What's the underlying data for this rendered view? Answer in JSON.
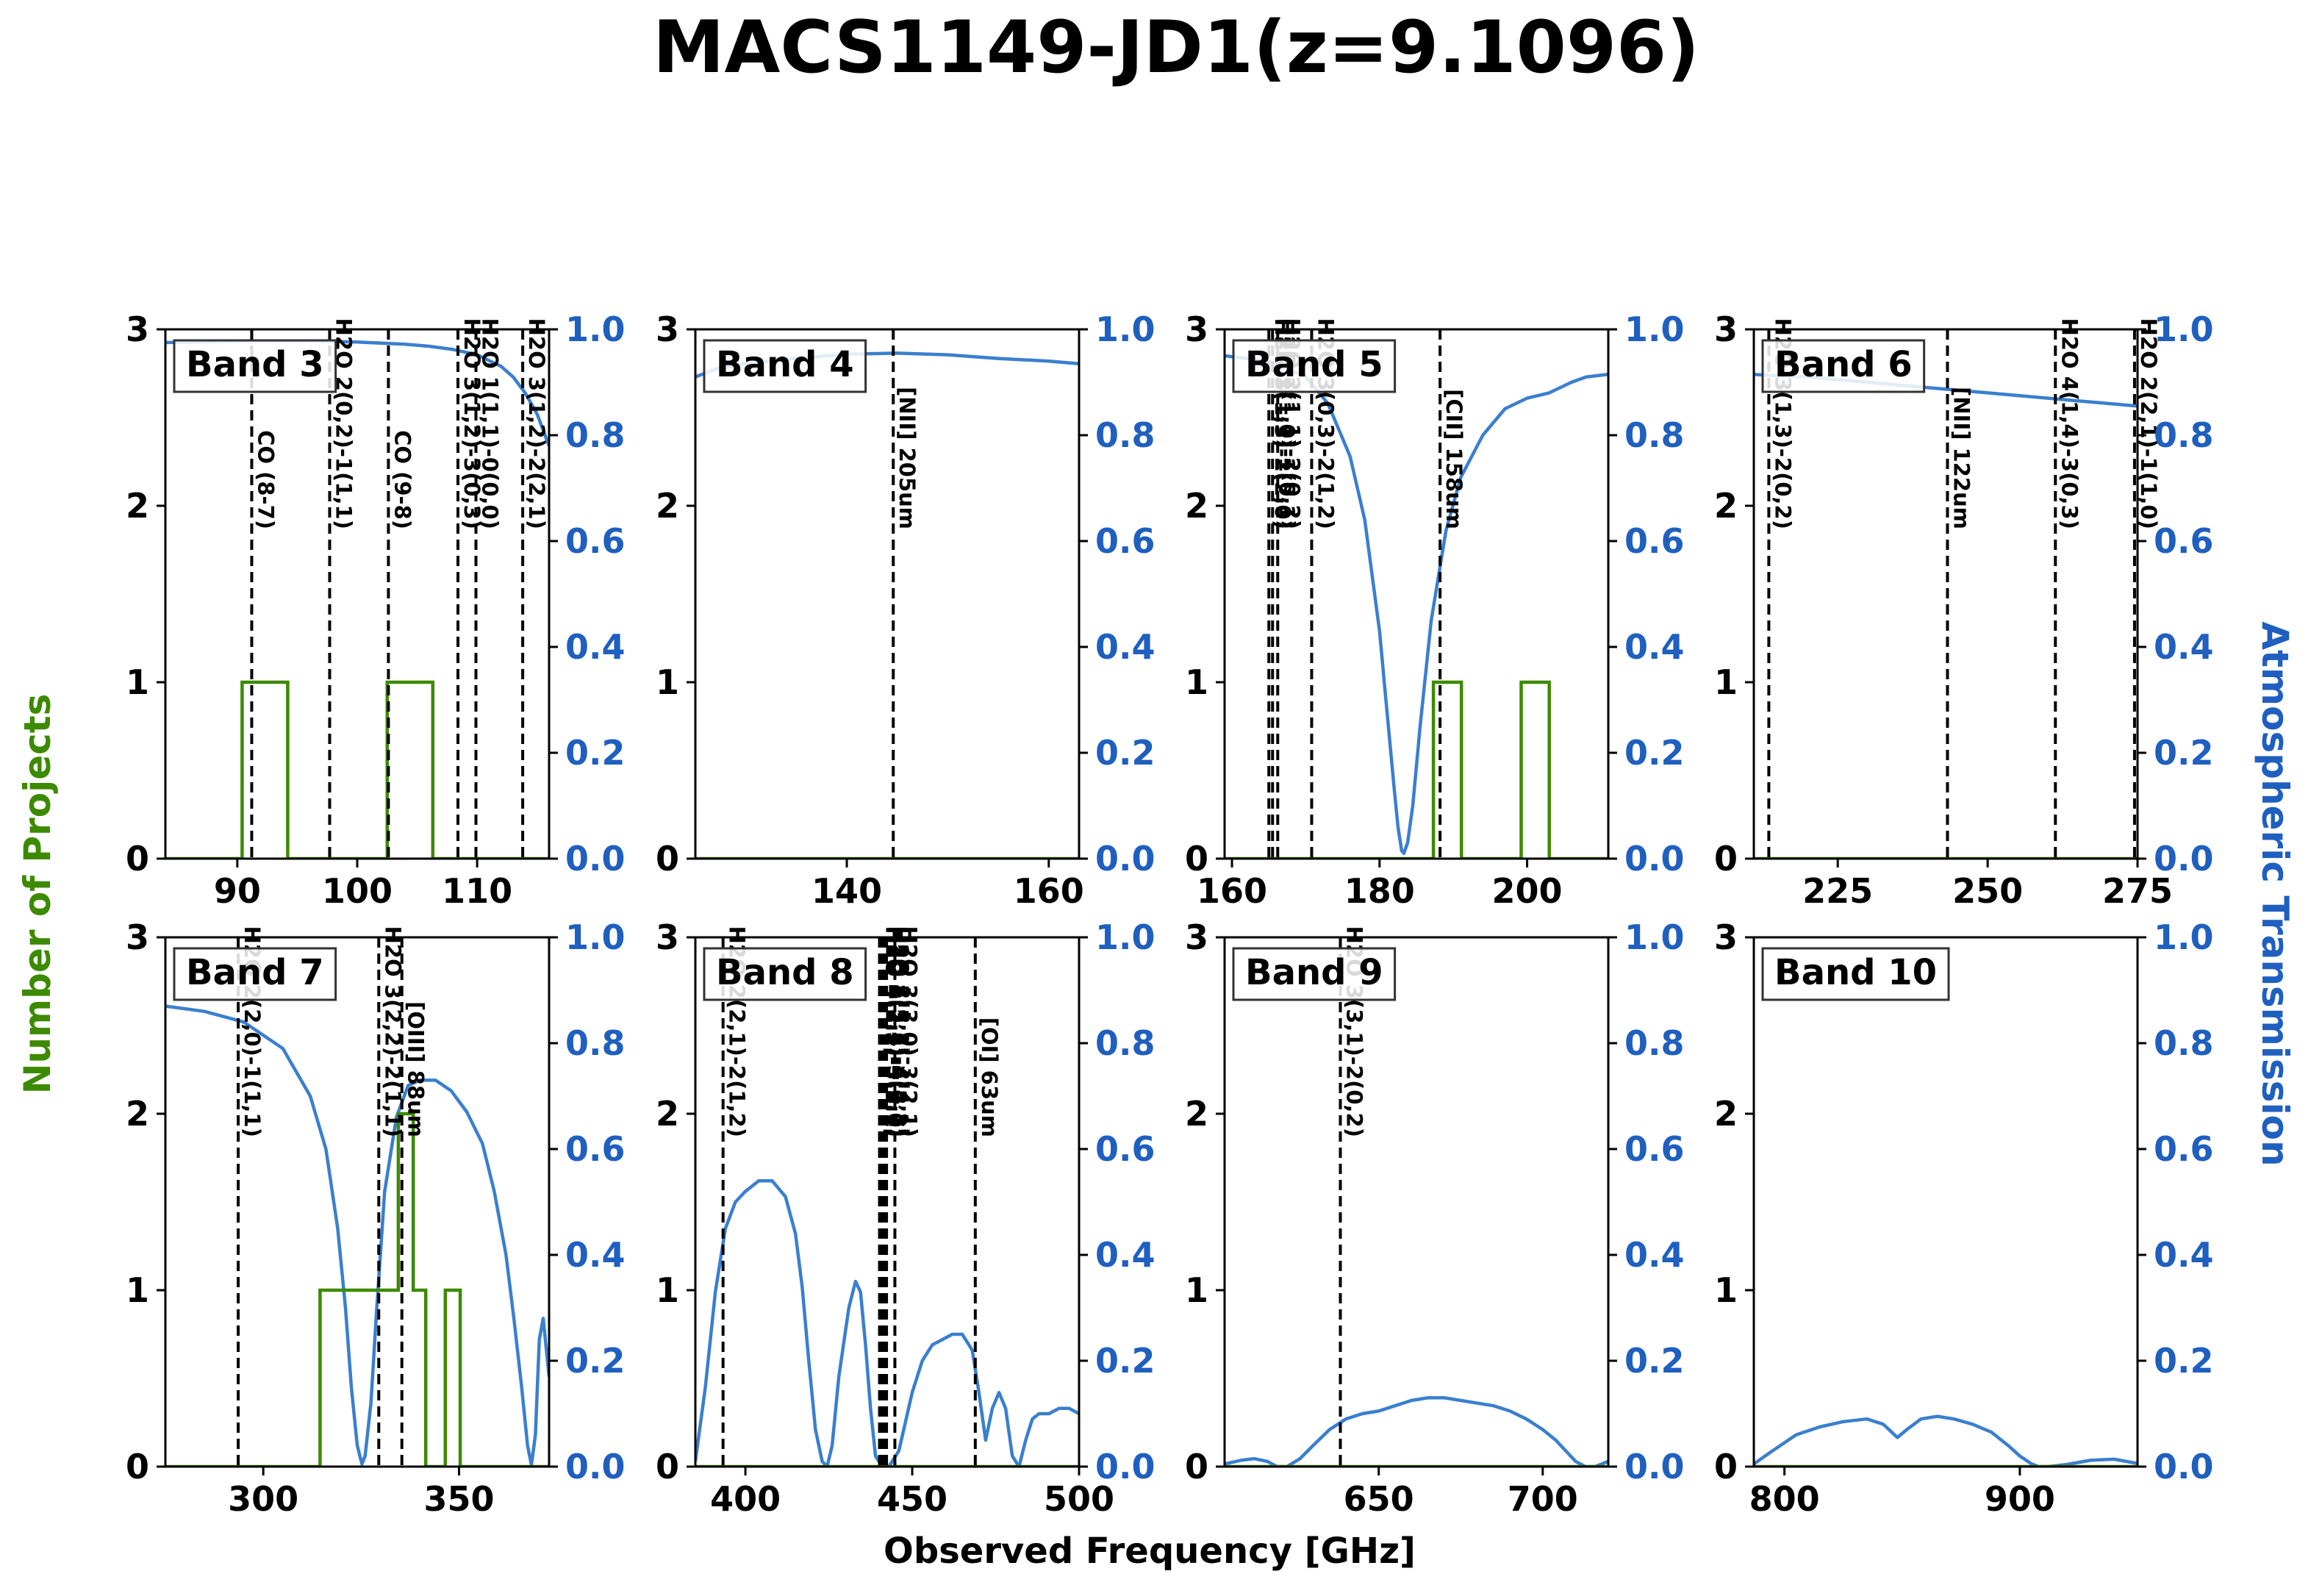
{
  "figure": {
    "title": "MACS1149-JD1(z=9.1096)",
    "xlabel": "Observed Frequency [GHz]",
    "ylabel_left": "Number of Projects",
    "ylabel_right": "Atmospheric Transmission",
    "colors": {
      "projects": "#3c8a00",
      "transmission": "#3a7fcf",
      "right_axis_text": "#1f5fbf",
      "axis": "#000000",
      "line_markers": "#000000"
    }
  },
  "chart_data": [
    {
      "type": "line",
      "title": "Band 3",
      "xlim": [
        84,
        116
      ],
      "ylim_left": [
        0,
        3
      ],
      "ylim_right": [
        0,
        1
      ],
      "xticks": [
        90,
        100,
        110
      ],
      "yticks_left": [
        0,
        1,
        2,
        3
      ],
      "yticks_right": [
        0.0,
        0.2,
        0.4,
        0.6,
        0.8,
        1.0
      ],
      "projects": {
        "x": [
          84,
          90.4,
          90.4,
          94.2,
          94.2,
          102.5,
          102.5,
          106.3,
          106.3,
          116
        ],
        "y": [
          0,
          0,
          1,
          1,
          0,
          0,
          1,
          1,
          0,
          0
        ]
      },
      "transmission": {
        "x": [
          84,
          90,
          96,
          100,
          104,
          106,
          108,
          110,
          112,
          113,
          114,
          115,
          116
        ],
        "y": [
          0.975,
          0.978,
          0.978,
          0.976,
          0.972,
          0.968,
          0.962,
          0.952,
          0.93,
          0.91,
          0.88,
          0.84,
          0.78
        ]
      },
      "lines": [
        {
          "x": 91.2,
          "label": "CO (8-7)"
        },
        {
          "x": 97.7,
          "label": "H2O 2(0,2)-1(1,1)"
        },
        {
          "x": 102.6,
          "label": "CO (9-8)"
        },
        {
          "x": 108.4,
          "label": "H2O 3(1,2)-3(0,3)"
        },
        {
          "x": 109.9,
          "label": "H2O 1(1,1)-0(0,0)"
        },
        {
          "x": 113.8,
          "label": "H2O 3(1,2)-2(2,1)"
        }
      ]
    },
    {
      "type": "line",
      "title": "Band 4",
      "xlim": [
        125,
        163
      ],
      "ylim_left": [
        0,
        3
      ],
      "ylim_right": [
        0,
        1
      ],
      "xticks": [
        140,
        160
      ],
      "yticks_left": [
        0,
        1,
        2,
        3
      ],
      "yticks_right": [
        0.0,
        0.2,
        0.4,
        0.6,
        0.8,
        1.0
      ],
      "projects": {
        "x": [
          125,
          163
        ],
        "y": [
          0,
          0
        ]
      },
      "transmission": {
        "x": [
          125,
          127,
          130,
          135,
          140,
          145,
          150,
          155,
          160,
          163
        ],
        "y": [
          0.91,
          0.925,
          0.935,
          0.945,
          0.953,
          0.955,
          0.952,
          0.945,
          0.94,
          0.935
        ]
      },
      "lines": [
        {
          "x": 144.6,
          "label": "[NII] 205um"
        }
      ]
    },
    {
      "type": "line",
      "title": "Band 5",
      "xlim": [
        159,
        211
      ],
      "ylim_left": [
        0,
        3
      ],
      "ylim_right": [
        0,
        1
      ],
      "xticks": [
        160,
        180,
        200
      ],
      "yticks_left": [
        0,
        1,
        2,
        3
      ],
      "yticks_right": [
        0.0,
        0.2,
        0.4,
        0.6,
        0.8,
        1.0
      ],
      "projects": {
        "x": [
          159,
          187.3,
          187.3,
          191.1,
          191.1,
          199.2,
          199.2,
          203.0,
          203.0,
          211
        ],
        "y": [
          0,
          0,
          1,
          1,
          0,
          0,
          1,
          1,
          0,
          0
        ]
      },
      "transmission": {
        "x": [
          159,
          165,
          170,
          173,
          176,
          178,
          180,
          181,
          182,
          182.5,
          183,
          183.3,
          183.8,
          184.5,
          185.5,
          187,
          189,
          191,
          194,
          197,
          200,
          203,
          206,
          208,
          211
        ],
        "y": [
          0.95,
          0.94,
          0.91,
          0.86,
          0.76,
          0.64,
          0.43,
          0.28,
          0.13,
          0.06,
          0.015,
          0.01,
          0.03,
          0.1,
          0.25,
          0.45,
          0.62,
          0.72,
          0.8,
          0.85,
          0.87,
          0.88,
          0.9,
          0.91,
          0.915
        ]
      },
      "lines": [
        {
          "x": 165.0,
          "label": "H2O 3(1,3)-2(2,0)"
        },
        {
          "x": 165.5,
          "label": "H2O 1(1,0)-1(0,1)"
        },
        {
          "x": 166.2,
          "label": "H2O 2(1,1)-2(0,2)"
        },
        {
          "x": 170.8,
          "label": "H2O 3(0,3)-2(1,2)"
        },
        {
          "x": 188.2,
          "label": "[CII] 158um"
        }
      ]
    },
    {
      "type": "line",
      "title": "Band 6",
      "xlim": [
        211,
        275
      ],
      "ylim_left": [
        0,
        3
      ],
      "ylim_right": [
        0,
        1
      ],
      "xticks": [
        225,
        250,
        275
      ],
      "yticks_left": [
        0,
        1,
        2,
        3
      ],
      "yticks_right": [
        0.0,
        0.2,
        0.4,
        0.6,
        0.8,
        1.0
      ],
      "projects": {
        "x": [
          211,
          275
        ],
        "y": [
          0,
          0
        ]
      },
      "transmission": {
        "x": [
          211,
          215,
          220,
          225,
          230,
          235,
          240,
          245,
          250,
          255,
          260,
          265,
          270,
          275
        ],
        "y": [
          0.915,
          0.912,
          0.91,
          0.905,
          0.9,
          0.895,
          0.89,
          0.885,
          0.88,
          0.875,
          0.87,
          0.865,
          0.86,
          0.855
        ]
      },
      "lines": [
        {
          "x": 213.5,
          "label": "H2O 3(1,3)-2(0,2)"
        },
        {
          "x": 243.3,
          "label": "[NII] 122um"
        },
        {
          "x": 261.3,
          "label": "H2O 4(1,4)-3(0,3)"
        },
        {
          "x": 274.5,
          "label": "H2O 2(2,1)-1(1,0)"
        }
      ]
    },
    {
      "type": "line",
      "title": "Band 7",
      "xlim": [
        275,
        373
      ],
      "ylim_left": [
        0,
        3
      ],
      "ylim_right": [
        0,
        1
      ],
      "xticks": [
        300,
        350
      ],
      "yticks_left": [
        0,
        1,
        2,
        3
      ],
      "yticks_right": [
        0.0,
        0.2,
        0.4,
        0.6,
        0.8,
        1.0
      ],
      "projects": {
        "x": [
          275,
          314.5,
          314.5,
          334.5,
          334.5,
          338.3,
          338.3,
          341.5,
          341.5,
          346.5,
          346.5,
          350.3,
          350.3,
          373
        ],
        "y": [
          0,
          0,
          1,
          1,
          2,
          2,
          1,
          1,
          0,
          0,
          1,
          1,
          0,
          0
        ]
      },
      "transmission": {
        "x": [
          275,
          285,
          295,
          305,
          312,
          316,
          319,
          321,
          322.5,
          324,
          325.2,
          326,
          327.5,
          329,
          331,
          334,
          337,
          340,
          344,
          348,
          352,
          356,
          359,
          362,
          364,
          366,
          367.5,
          368.5,
          369.5,
          370.5,
          371.5,
          373
        ],
        "y": [
          0.87,
          0.86,
          0.84,
          0.79,
          0.7,
          0.6,
          0.45,
          0.3,
          0.15,
          0.04,
          0.005,
          0.02,
          0.12,
          0.3,
          0.52,
          0.66,
          0.72,
          0.73,
          0.73,
          0.71,
          0.67,
          0.61,
          0.52,
          0.4,
          0.28,
          0.15,
          0.04,
          0.003,
          0.06,
          0.24,
          0.28,
          0.17
        ]
      },
      "lines": [
        {
          "x": 293.6,
          "label": "H2O 2(2,0)-1(1,1)"
        },
        {
          "x": 329.5,
          "label": "H2O 3(2,2)-2(1,1)"
        },
        {
          "x": 335.4,
          "label": "[OIII] 88um"
        }
      ]
    },
    {
      "type": "line",
      "title": "Band 8",
      "xlim": [
        385,
        500
      ],
      "ylim_left": [
        0,
        3
      ],
      "ylim_right": [
        0,
        1
      ],
      "xticks": [
        400,
        450,
        500
      ],
      "yticks_left": [
        0,
        1,
        2,
        3
      ],
      "yticks_right": [
        0.0,
        0.2,
        0.4,
        0.6,
        0.8,
        1.0
      ],
      "projects": {
        "x": [
          385,
          500
        ],
        "y": [
          0,
          0
        ]
      },
      "transmission": {
        "x": [
          385,
          388,
          391,
          394,
          397,
          400,
          404,
          408,
          412,
          415,
          417,
          419,
          421,
          423,
          424.5,
          426,
          428,
          431,
          433,
          434.5,
          436,
          437.5,
          439,
          441,
          443,
          446,
          450,
          453,
          456,
          459,
          462,
          465,
          468,
          470,
          472,
          474,
          476,
          478,
          480,
          482,
          484,
          486,
          488,
          491,
          494,
          497,
          500
        ],
        "y": [
          0.01,
          0.15,
          0.33,
          0.45,
          0.5,
          0.52,
          0.54,
          0.54,
          0.51,
          0.44,
          0.34,
          0.2,
          0.07,
          0.01,
          0.0,
          0.04,
          0.17,
          0.3,
          0.35,
          0.33,
          0.23,
          0.11,
          0.02,
          0.0,
          0.0,
          0.03,
          0.14,
          0.2,
          0.23,
          0.24,
          0.25,
          0.25,
          0.22,
          0.14,
          0.05,
          0.11,
          0.14,
          0.11,
          0.02,
          0.0,
          0.05,
          0.09,
          0.1,
          0.1,
          0.11,
          0.11,
          0.1
        ]
      },
      "lines": [
        {
          "x": 393.3,
          "label": "H2O 2(2,1)-2(1,2)"
        },
        {
          "x": 440.2,
          "label": "H2O 4(2,2)-3(3,1)"
        },
        {
          "x": 440.7,
          "label": "H2O 4(2,3)-3(3,0)"
        },
        {
          "x": 441.2,
          "label": "H2O 5(2,4)-4(3,1)"
        },
        {
          "x": 441.7,
          "label": "H2O 4(3,1)-4(2,2)"
        },
        {
          "x": 442.3,
          "label": "H2O 5(3,2)-4(4,1)"
        },
        {
          "x": 444.8,
          "label": "H2O 3(3,0)-3(2,1)"
        },
        {
          "x": 468.9,
          "label": "[OI] 63um"
        }
      ]
    },
    {
      "type": "line",
      "title": "Band 9",
      "xlim": [
        603,
        720
      ],
      "ylim_left": [
        0,
        3
      ],
      "ylim_right": [
        0,
        1
      ],
      "xticks": [
        650,
        700
      ],
      "yticks_left": [
        0,
        1,
        2,
        3
      ],
      "yticks_right": [
        0.0,
        0.2,
        0.4,
        0.6,
        0.8,
        1.0
      ],
      "projects": {
        "x": [
          603,
          720
        ],
        "y": [
          0,
          0
        ]
      },
      "transmission": {
        "x": [
          603,
          608,
          612,
          616,
          619,
          622,
          626,
          630,
          635,
          640,
          645,
          650,
          655,
          660,
          665,
          670,
          675,
          680,
          685,
          690,
          695,
          700,
          704,
          707,
          710,
          713,
          716,
          720
        ],
        "y": [
          0.005,
          0.012,
          0.015,
          0.01,
          0.0,
          0.0,
          0.015,
          0.04,
          0.07,
          0.09,
          0.1,
          0.105,
          0.115,
          0.125,
          0.13,
          0.13,
          0.125,
          0.12,
          0.115,
          0.105,
          0.09,
          0.07,
          0.05,
          0.03,
          0.01,
          0.0,
          0.0,
          0.01
        ]
      },
      "lines": [
        {
          "x": 638.3,
          "label": "H2O 3(3,1)-2(0,2)"
        }
      ]
    },
    {
      "type": "line",
      "title": "Band 10",
      "xlim": [
        787,
        950
      ],
      "ylim_left": [
        0,
        3
      ],
      "ylim_right": [
        0,
        1
      ],
      "xticks": [
        800,
        900
      ],
      "yticks_left": [
        0,
        1,
        2,
        3
      ],
      "yticks_right": [
        0.0,
        0.2,
        0.4,
        0.6,
        0.8,
        1.0
      ],
      "projects": {
        "x": [
          787,
          950
        ],
        "y": [
          0,
          0
        ]
      },
      "transmission": {
        "x": [
          787,
          795,
          805,
          815,
          825,
          835,
          842,
          848,
          852,
          858,
          865,
          872,
          880,
          888,
          895,
          900,
          905,
          908,
          912,
          920,
          930,
          940,
          950
        ],
        "y": [
          0.005,
          0.03,
          0.06,
          0.075,
          0.085,
          0.09,
          0.08,
          0.055,
          0.07,
          0.09,
          0.095,
          0.09,
          0.08,
          0.065,
          0.04,
          0.02,
          0.005,
          0.0,
          0.0,
          0.004,
          0.012,
          0.014,
          0.006
        ]
      },
      "lines": []
    }
  ]
}
